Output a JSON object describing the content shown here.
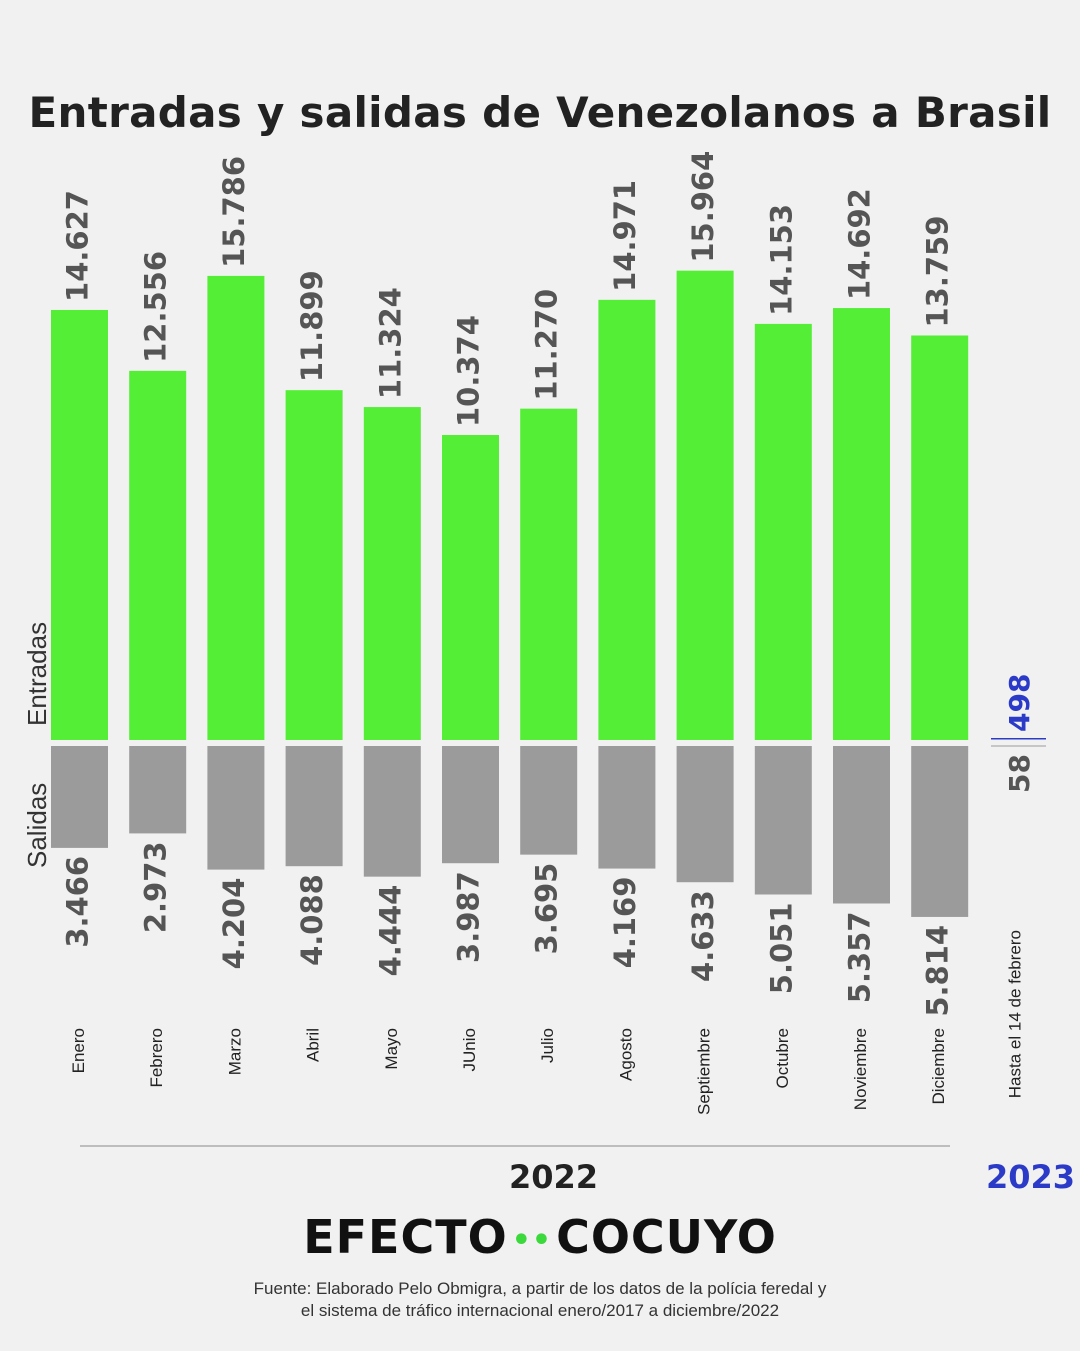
{
  "title": "Entradas y salidas de Venezolanos a Brasil",
  "y_labels": {
    "entradas": "Entradas",
    "salidas": "Salidas"
  },
  "year_2022": "2022",
  "year_2023": "2023",
  "brand": {
    "left": "EFECTO",
    "dots": "••",
    "right": "COCUYO"
  },
  "source": {
    "line1": "Fuente: Elaborado Pelo Obmigra, a partir de los datos de la polícia feredal y",
    "line2": "el sistema de tráfico internacional enero/2017 a diciembre/2022"
  },
  "colors": {
    "entradas": "#55ee37",
    "salidas": "#9b9b9b",
    "value_text": "#555555",
    "accent_2023": "#2b3bc8"
  },
  "chart_data": {
    "type": "bar",
    "categories": [
      "Enero",
      "Febrero",
      "Marzo",
      "Abril",
      "Mayo",
      "JUnio",
      "Julio",
      "Agosto",
      "Septiembre",
      "Octubre",
      "Noviembre",
      "Diciembre"
    ],
    "series": [
      {
        "name": "Entradas",
        "values": [
          14627,
          12556,
          15786,
          11899,
          11324,
          10374,
          11270,
          14971,
          15964,
          14153,
          14692,
          13759
        ],
        "labels": [
          "14.627",
          "12.556",
          "15.786",
          "11.899",
          "11.324",
          "10.374",
          "11.270",
          "14.971",
          "15.964",
          "14.153",
          "14.692",
          "13.759"
        ]
      },
      {
        "name": "Salidas",
        "values": [
          3466,
          2973,
          4204,
          4088,
          4444,
          3987,
          3695,
          4169,
          4633,
          5051,
          5357,
          5814
        ],
        "labels": [
          "3.466",
          "2.973",
          "4.204",
          "4.088",
          "4.444",
          "3.987",
          "3.695",
          "4.169",
          "4.633",
          "5.051",
          "5.357",
          "5.814"
        ]
      }
    ],
    "extra": {
      "category": "Hasta el 14 de febrero",
      "entradas": 498,
      "entradas_label": "498",
      "salidas": 58,
      "salidas_label": "58"
    }
  }
}
